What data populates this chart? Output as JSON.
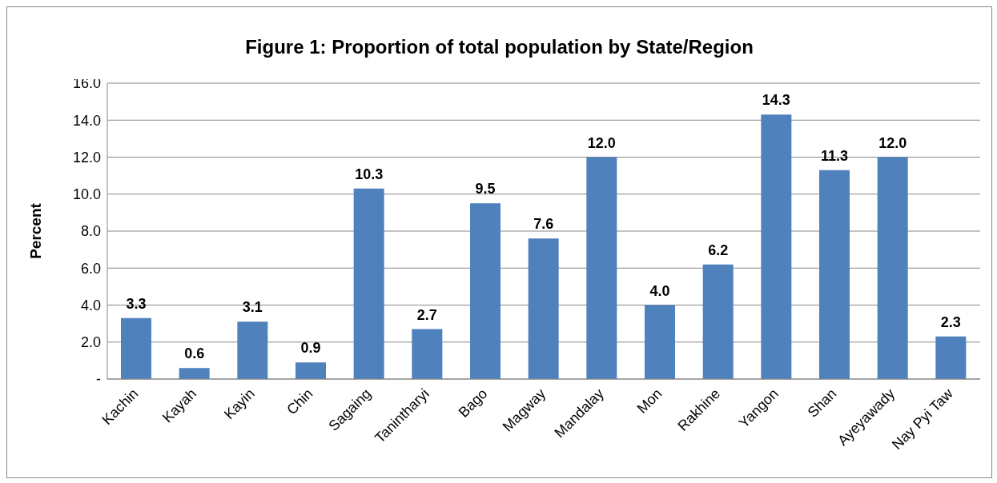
{
  "chart_data": {
    "type": "bar",
    "title": "Figure 1: Proportion of total population by State/Region",
    "ylabel": "Percent",
    "categories": [
      "Kachin",
      "Kayah",
      "Kayin",
      "Chin",
      "Sagaing",
      "Tanintharyi",
      "Bago",
      "Magway",
      "Mandalay",
      "Mon",
      "Rakhine",
      "Yangon",
      "Shan",
      "Ayeyawady",
      "Nay Pyi Taw"
    ],
    "values": [
      3.3,
      0.6,
      3.1,
      0.9,
      10.3,
      2.7,
      9.5,
      7.6,
      12.0,
      4.0,
      6.2,
      14.3,
      11.3,
      12.0,
      2.3
    ],
    "value_labels": [
      "3.3",
      "0.6",
      "3.1",
      "0.9",
      "10.3",
      "2.7",
      "9.5",
      "7.6",
      "12.0",
      "4.0",
      "6.2",
      "14.3",
      "11.3",
      "12.0",
      "2.3"
    ],
    "color": "#4f81bd",
    "ylim": [
      0,
      16
    ],
    "yticks": [
      {
        "value": 0,
        "label": "-"
      },
      {
        "value": 2,
        "label": "2.0"
      },
      {
        "value": 4,
        "label": "4.0"
      },
      {
        "value": 6,
        "label": "6.0"
      },
      {
        "value": 8,
        "label": "8.0"
      },
      {
        "value": 10,
        "label": "10.0"
      },
      {
        "value": 12,
        "label": "12.0"
      },
      {
        "value": 14,
        "label": "14.0"
      },
      {
        "value": 16,
        "label": "16.0"
      }
    ],
    "grid": "y"
  }
}
